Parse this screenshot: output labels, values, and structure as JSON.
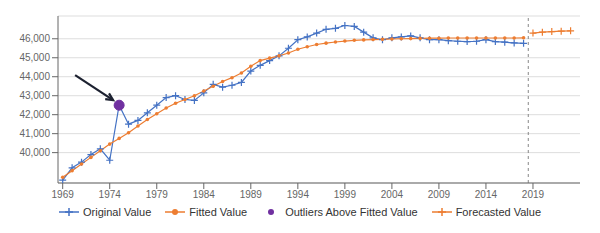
{
  "chart_data": {
    "type": "line",
    "xlim": [
      1968.5,
      2024
    ],
    "ylim": [
      38400,
      47200
    ],
    "xticks": [
      1969,
      1974,
      1979,
      1984,
      1989,
      1994,
      1999,
      2004,
      2009,
      2014,
      2019
    ],
    "yticks": [
      {
        "value": 40000,
        "label": "40,000"
      },
      {
        "value": 41000,
        "label": "41,000"
      },
      {
        "value": 42000,
        "label": "42,000"
      },
      {
        "value": 43000,
        "label": "43,000"
      },
      {
        "value": 44000,
        "label": "44,000"
      },
      {
        "value": 45000,
        "label": "45,000"
      },
      {
        "value": 46000,
        "label": "46,000"
      }
    ],
    "grid": true,
    "legend": "bottom",
    "forecast_start": 2018.5,
    "series": [
      {
        "name": "Original Value",
        "color": "#4472c4",
        "marker": "+",
        "x": [
          1969,
          1970,
          1971,
          1972,
          1973,
          1974,
          1975,
          1976,
          1977,
          1978,
          1979,
          1980,
          1981,
          1982,
          1983,
          1984,
          1985,
          1986,
          1987,
          1988,
          1989,
          1990,
          1991,
          1992,
          1993,
          1994,
          1995,
          1996,
          1997,
          1998,
          1999,
          2000,
          2001,
          2002,
          2003,
          2004,
          2005,
          2006,
          2007,
          2008,
          2009,
          2010,
          2011,
          2012,
          2013,
          2014,
          2015,
          2016,
          2017,
          2018
        ],
        "values": [
          38550,
          39200,
          39500,
          39900,
          40200,
          39600,
          42500,
          41500,
          41700,
          42100,
          42500,
          42900,
          43000,
          42800,
          42750,
          43150,
          43600,
          43450,
          43550,
          43700,
          44300,
          44600,
          44850,
          45100,
          45500,
          45950,
          46100,
          46300,
          46500,
          46550,
          46700,
          46650,
          46350,
          46050,
          45950,
          46050,
          46100,
          46150,
          46050,
          45950,
          45950,
          45900,
          45870,
          45850,
          45870,
          45950,
          45850,
          45820,
          45780,
          45760
        ]
      },
      {
        "name": "Fitted Value",
        "color": "#ed7d31",
        "marker": "o",
        "x": [
          1969,
          1970,
          1971,
          1972,
          1973,
          1974,
          1975,
          1976,
          1977,
          1978,
          1979,
          1980,
          1981,
          1982,
          1983,
          1984,
          1985,
          1986,
          1987,
          1988,
          1989,
          1990,
          1991,
          1992,
          1993,
          1994,
          1995,
          1996,
          1997,
          1998,
          1999,
          2000,
          2001,
          2002,
          2003,
          2004,
          2005,
          2006,
          2007,
          2008,
          2009,
          2010,
          2011,
          2012,
          2013,
          2014,
          2015,
          2016,
          2017,
          2018
        ],
        "values": [
          38700,
          39050,
          39400,
          39750,
          40100,
          40450,
          40750,
          41050,
          41400,
          41750,
          42050,
          42350,
          42600,
          42800,
          43000,
          43250,
          43500,
          43750,
          43950,
          44200,
          44550,
          44850,
          44980,
          45100,
          45250,
          45450,
          45580,
          45700,
          45770,
          45830,
          45880,
          45920,
          45940,
          45960,
          45970,
          45990,
          46000,
          46010,
          46020,
          46030,
          46030,
          46040,
          46040,
          46040,
          46040,
          46040,
          46040,
          46040,
          46040,
          46050
        ]
      },
      {
        "name": "Outliers Above Fitted Value",
        "type": "scatter",
        "color": "#7030a0",
        "marker": "o",
        "x": [
          1975
        ],
        "values": [
          42500
        ]
      },
      {
        "name": "Forecasted Value",
        "color": "#ed7d31",
        "marker": "+",
        "x": [
          2019,
          2020,
          2021,
          2022,
          2023
        ],
        "values": [
          46300,
          46350,
          46380,
          46400,
          46420
        ]
      }
    ]
  }
}
